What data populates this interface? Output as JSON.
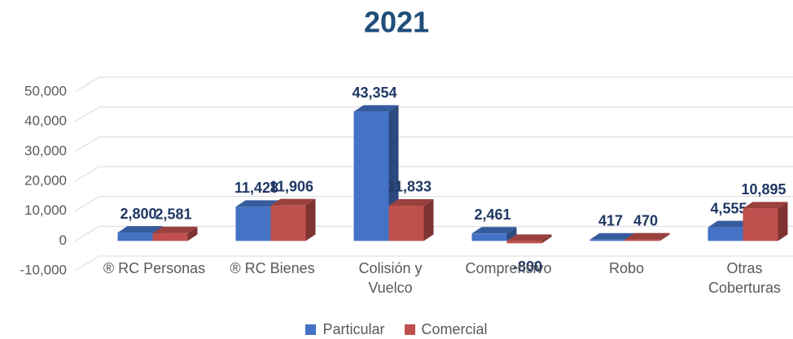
{
  "chart_data": {
    "type": "bar3d",
    "title": "2021",
    "categories": [
      "® RC Personas",
      "® RC Bienes",
      "Colisión y Vuelco",
      "Comprensivo",
      "Robo",
      "Otras Coberturas"
    ],
    "series": [
      {
        "name": "Particular",
        "color": "#4472c4",
        "values": [
          2800,
          11428,
          43354,
          2461,
          417,
          4555
        ],
        "value_labels": [
          "2,800",
          "11,428",
          "43,354",
          "2,461",
          "417",
          "4,555"
        ]
      },
      {
        "name": "Comercial",
        "color": "#c0504d",
        "values": [
          2581,
          11906,
          11833,
          -800,
          470,
          10895
        ],
        "value_labels": [
          "2,581",
          "11,906",
          "11,833",
          "-800",
          "470",
          "10,895"
        ]
      }
    ],
    "ylim": [
      -10000,
      50000
    ],
    "yticks": [
      {
        "value": -10000,
        "label": "-10,000"
      },
      0,
      {
        "value": 10000,
        "label": "10,000"
      },
      {
        "value": 20000,
        "label": "20,000"
      },
      {
        "value": 30000,
        "label": "30,000"
      },
      {
        "value": 40000,
        "label": "40,000"
      },
      {
        "value": 50000,
        "label": "50,000"
      }
    ],
    "grid": true
  }
}
